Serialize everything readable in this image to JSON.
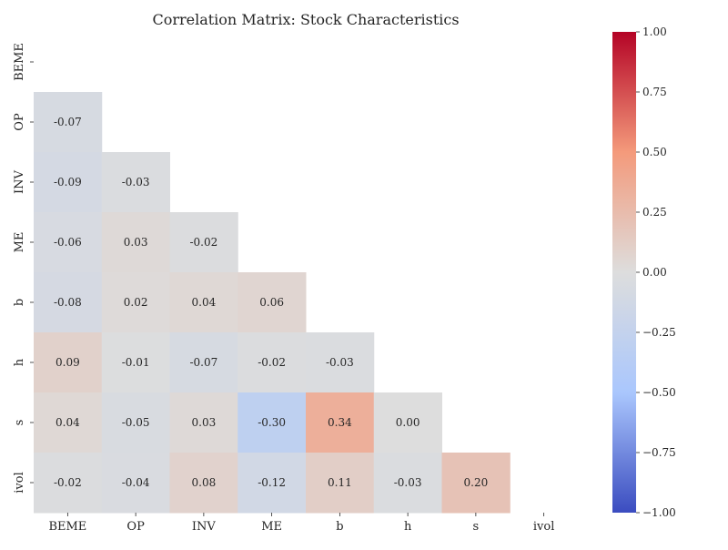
{
  "chart_data": {
    "type": "heatmap",
    "title": "Correlation Matrix: Stock Characteristics",
    "labels": [
      "BEME",
      "OP",
      "INV",
      "ME",
      "b",
      "h",
      "s",
      "ivol"
    ],
    "mask": "upper-triangle-and-diagonal",
    "cells": [
      {
        "row": "OP",
        "col": "BEME",
        "value": -0.07
      },
      {
        "row": "INV",
        "col": "BEME",
        "value": -0.09
      },
      {
        "row": "INV",
        "col": "OP",
        "value": -0.03
      },
      {
        "row": "ME",
        "col": "BEME",
        "value": -0.06
      },
      {
        "row": "ME",
        "col": "OP",
        "value": 0.03
      },
      {
        "row": "ME",
        "col": "INV",
        "value": -0.02
      },
      {
        "row": "b",
        "col": "BEME",
        "value": -0.08
      },
      {
        "row": "b",
        "col": "OP",
        "value": 0.02
      },
      {
        "row": "b",
        "col": "INV",
        "value": 0.04
      },
      {
        "row": "b",
        "col": "ME",
        "value": 0.06
      },
      {
        "row": "h",
        "col": "BEME",
        "value": 0.09
      },
      {
        "row": "h",
        "col": "OP",
        "value": -0.01
      },
      {
        "row": "h",
        "col": "INV",
        "value": -0.07
      },
      {
        "row": "h",
        "col": "ME",
        "value": -0.02
      },
      {
        "row": "h",
        "col": "b",
        "value": -0.03
      },
      {
        "row": "s",
        "col": "BEME",
        "value": 0.04
      },
      {
        "row": "s",
        "col": "OP",
        "value": -0.05
      },
      {
        "row": "s",
        "col": "INV",
        "value": 0.03
      },
      {
        "row": "s",
        "col": "ME",
        "value": -0.3
      },
      {
        "row": "s",
        "col": "b",
        "value": 0.34
      },
      {
        "row": "s",
        "col": "h",
        "value": 0.0
      },
      {
        "row": "ivol",
        "col": "BEME",
        "value": -0.02
      },
      {
        "row": "ivol",
        "col": "OP",
        "value": -0.04
      },
      {
        "row": "ivol",
        "col": "INV",
        "value": 0.08
      },
      {
        "row": "ivol",
        "col": "ME",
        "value": -0.12
      },
      {
        "row": "ivol",
        "col": "b",
        "value": 0.11
      },
      {
        "row": "ivol",
        "col": "h",
        "value": -0.03
      },
      {
        "row": "ivol",
        "col": "s",
        "value": 0.2
      }
    ],
    "colorscale": {
      "name": "coolwarm",
      "vmin": -1.0,
      "vmax": 1.0,
      "ticks": [
        1.0,
        0.75,
        0.5,
        0.25,
        0.0,
        -0.25,
        -0.5,
        -0.75,
        -1.0
      ],
      "tick_labels": [
        "1.00",
        "0.75",
        "0.50",
        "0.25",
        "0.00",
        "−0.25",
        "−0.50",
        "−0.75",
        "−1.00"
      ]
    },
    "colors": {
      "low": "#3b4cc0",
      "mid": "#dddddd",
      "high": "#b40426"
    }
  }
}
